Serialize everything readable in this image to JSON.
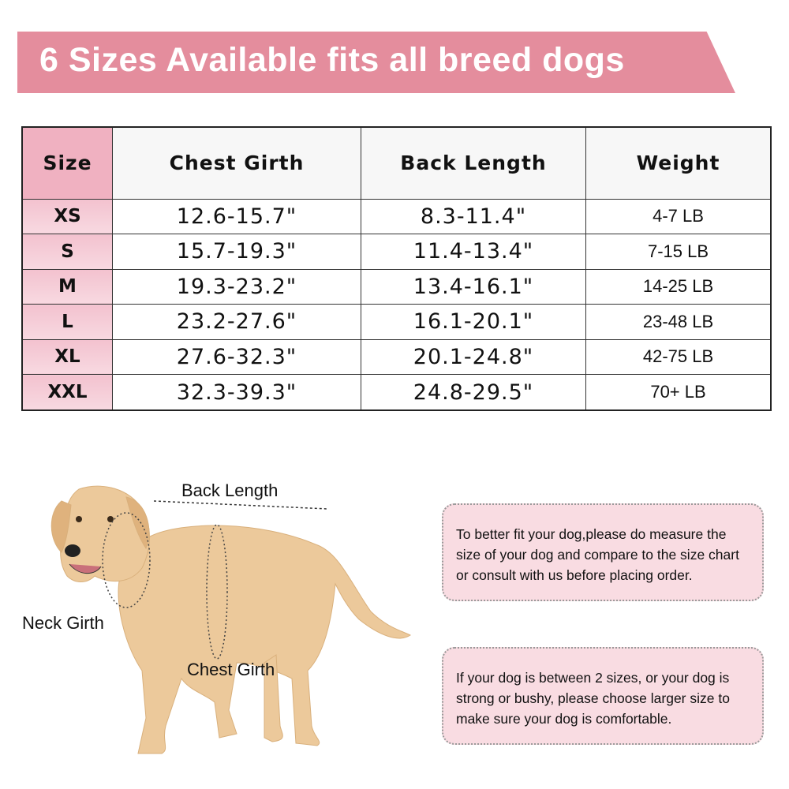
{
  "banner": {
    "title": "6 Sizes Available fits all breed dogs",
    "color": "#e48d9d"
  },
  "table": {
    "headers": [
      "Size",
      "Chest Girth",
      "Back Length",
      "Weight"
    ],
    "rows": [
      [
        "XS",
        "12.6-15.7\"",
        "8.3-11.4\"",
        "4-7 LB"
      ],
      [
        "S",
        "15.7-19.3\"",
        "11.4-13.4\"",
        "7-15 LB"
      ],
      [
        "M",
        "19.3-23.2\"",
        "13.4-16.1\"",
        "14-25 LB"
      ],
      [
        "L",
        "23.2-27.6\"",
        "16.1-20.1\"",
        "23-48 LB"
      ],
      [
        "XL",
        "27.6-32.3\"",
        "20.1-24.8\"",
        "42-75 LB"
      ],
      [
        "XXL",
        "32.3-39.3\"",
        "24.8-29.5\"",
        "70+ LB"
      ]
    ]
  },
  "diagram": {
    "back_length": "Back Length",
    "neck_girth": "Neck Girth",
    "chest_girth": "Chest Girth"
  },
  "notes": [
    "To better fit your dog,please do measure the size of your dog and compare to the size chart or consult with us before placing order.",
    "If your dog is between 2 sizes, or your dog is strong or bushy, please choose larger size to make sure your dog is comfortable."
  ]
}
